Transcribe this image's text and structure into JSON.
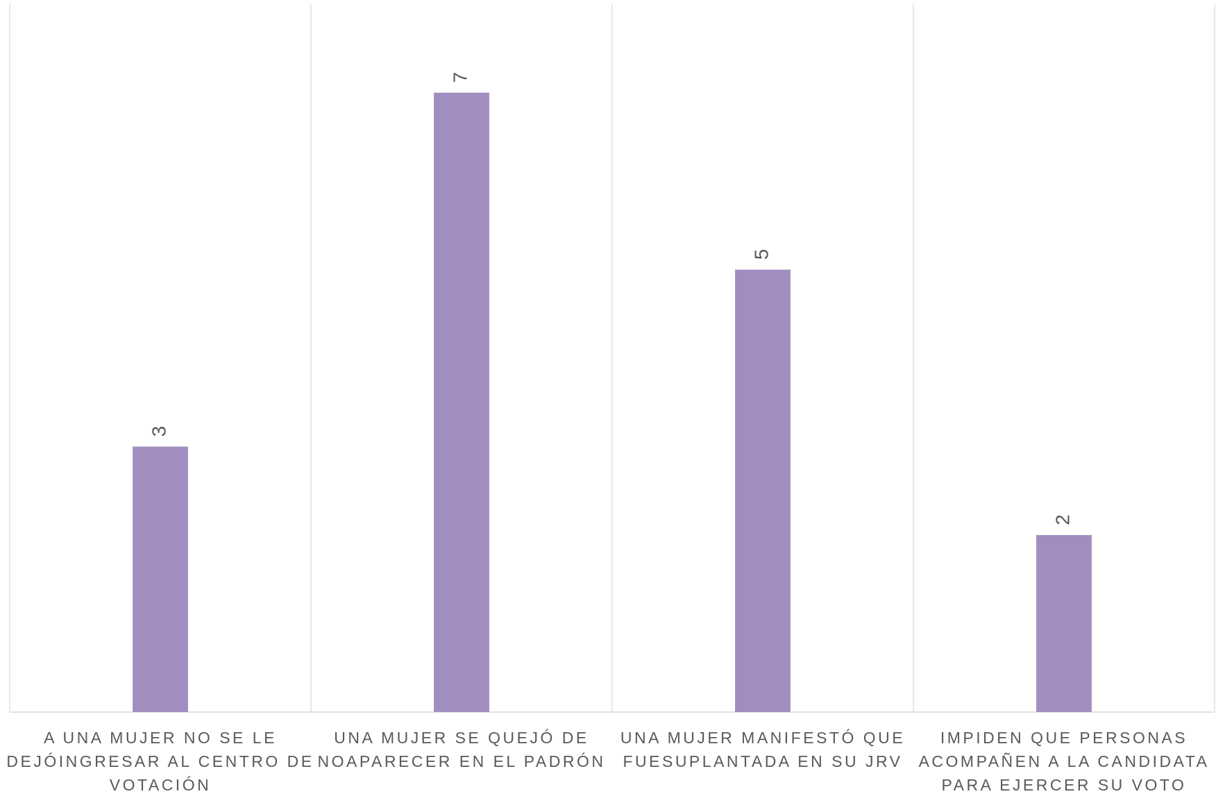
{
  "chart_data": {
    "type": "bar",
    "categories": [
      "A UNA MUJER NO SE LE DEJÓINGRESAR AL CENTRO DE VOTACIÓN",
      "UNA MUJER SE QUEJÓ DE NOAPARECER EN EL PADRÓN",
      "UNA MUJER MANIFESTÓ QUE FUESUPLANTADA EN SU JRV",
      "IMPIDEN QUE PERSONAS ACOMPAÑEN A LA CANDIDATA PARA EJERCER SU VOTO"
    ],
    "values": [
      3,
      7,
      5,
      2
    ],
    "color": "#a28dc1",
    "ylim": [
      0,
      8
    ],
    "grid": false,
    "data_labels": true
  }
}
